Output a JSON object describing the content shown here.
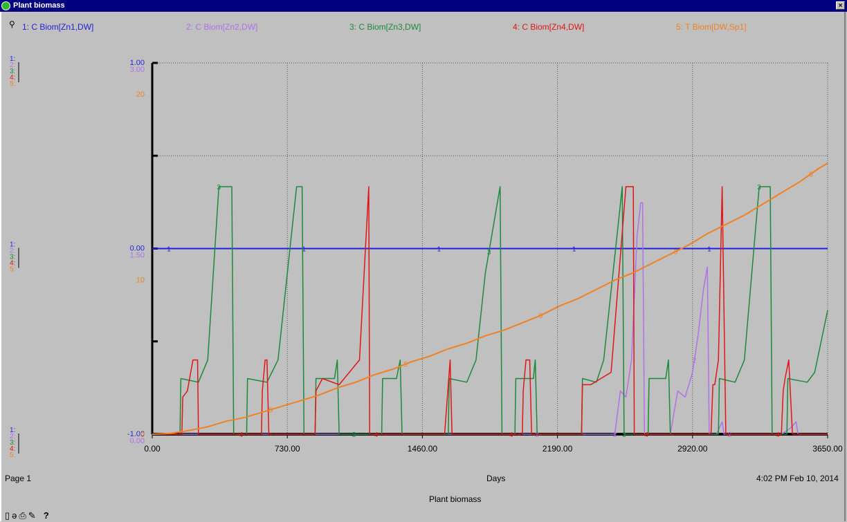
{
  "window": {
    "title": "Plant biomass",
    "close_label": "×"
  },
  "colors": {
    "s1": "#1f1fe0",
    "s2": "#b070e8",
    "s3": "#1a8a3a",
    "s4": "#e01414",
    "s5": "#f08020",
    "background": "#c0c0c0"
  },
  "footer": {
    "page": "Page 1",
    "timestamp": "4:02 PM  Feb 10, 2014",
    "chart_name": "Plant biomass"
  },
  "toolbar": {
    "icons": [
      "page-icon",
      "lock-icon",
      "print-icon",
      "pencil-icon",
      "help-icon"
    ],
    "help_label": "?"
  },
  "chart_data": {
    "type": "line",
    "title": "Plant biomass",
    "xlabel": "Days",
    "xlim": [
      0,
      3650
    ],
    "x_ticks": [
      "0.00",
      "730.00",
      "1460.00",
      "2190.00",
      "2920.00",
      "3650.00"
    ],
    "grid": true,
    "legend_position": "top",
    "axis_blocks": [
      {
        "labels": [
          "1:",
          "2:",
          "3:",
          "4:",
          "5:"
        ],
        "values": [
          "1.00",
          "3.00",
          "",
          "",
          "20"
        ]
      },
      {
        "labels": [
          "1:",
          "2:",
          "3:",
          "4:",
          "5:"
        ],
        "values": [
          "0.00",
          "1.50",
          "",
          "",
          "10"
        ]
      },
      {
        "labels": [
          "1:",
          "2:",
          "3:",
          "4:",
          "5:"
        ],
        "values": [
          "-1.00",
          "0.00",
          "",
          "",
          "0"
        ]
      }
    ],
    "series": [
      {
        "name": "1: C Biom[Zn1,DW]",
        "ylim": [
          -1,
          1
        ],
        "x": [
          0,
          3650
        ],
        "y": [
          0,
          0
        ]
      },
      {
        "name": "2: C Biom[Zn2,DW]",
        "ylim": [
          0,
          3
        ],
        "x": [
          0,
          2500,
          2530,
          2560,
          2590,
          2620,
          2640,
          2650,
          2660,
          2800,
          2840,
          2880,
          2920,
          2950,
          2980,
          3000,
          3010,
          3050,
          3080,
          3090,
          3400,
          3450,
          3480,
          3490,
          3650
        ],
        "y": [
          0,
          0,
          0.35,
          0.3,
          0.6,
          1.6,
          1.87,
          1.87,
          0,
          0,
          0.35,
          0.3,
          0.5,
          0.8,
          1.18,
          1.35,
          0,
          0,
          0.1,
          0,
          0,
          0.05,
          0.1,
          0,
          0
        ]
      },
      {
        "name": "3: C Biom[Zn3,DW]",
        "ylim": [
          0,
          3
        ],
        "x": [
          0,
          150,
          155,
          250,
          300,
          360,
          430,
          440,
          510,
          515,
          620,
          680,
          780,
          810,
          820,
          880,
          885,
          985,
          1000,
          1010,
          1240,
          1245,
          1320,
          1340,
          1350,
          1600,
          1605,
          1700,
          1750,
          1800,
          1880,
          1890,
          1960,
          1965,
          2060,
          2070,
          2080,
          2320,
          2325,
          2400,
          2440,
          2540,
          2550,
          2680,
          2685,
          2775,
          2790,
          2800,
          3060,
          3065,
          3150,
          3200,
          3280,
          3340,
          3350,
          3430,
          3435,
          3540,
          3580,
          3650
        ],
        "y": [
          0,
          0,
          0.45,
          0.42,
          0.6,
          2.0,
          2.0,
          0,
          0,
          0.45,
          0.42,
          0.6,
          2.0,
          2.0,
          0,
          0,
          0.45,
          0.45,
          0.6,
          0,
          0,
          0.45,
          0.45,
          0.6,
          0,
          0,
          0.45,
          0.42,
          0.6,
          1.3,
          2.0,
          0,
          0,
          0.45,
          0.45,
          0.6,
          0,
          0,
          0.45,
          0.42,
          0.6,
          2.0,
          0,
          0,
          0.45,
          0.45,
          0.6,
          0,
          0,
          0.45,
          0.42,
          0.6,
          2.0,
          2.0,
          0,
          0,
          0.45,
          0.42,
          0.5,
          1.0
        ]
      },
      {
        "name": "4: C Biom[Zn4,DW]",
        "ylim": [
          0,
          3
        ],
        "x": [
          0,
          160,
          165,
          190,
          220,
          245,
          250,
          590,
          595,
          610,
          620,
          630,
          880,
          885,
          920,
          1010,
          1120,
          1170,
          1175,
          1580,
          1600,
          1610,
          1620,
          2000,
          2005,
          2020,
          2040,
          2050,
          2320,
          2325,
          2370,
          2480,
          2560,
          2600,
          2605,
          3020,
          3030,
          3040,
          3060,
          3080,
          3100,
          3400,
          3410,
          3420,
          3440,
          3460,
          3650
        ],
        "y": [
          0,
          0,
          0.3,
          0.35,
          0.6,
          0.6,
          0,
          0,
          0.35,
          0.6,
          0.6,
          0,
          0,
          0.35,
          0.45,
          0.4,
          0.6,
          2.0,
          0,
          0,
          0.4,
          0.6,
          0,
          0,
          0.35,
          0.6,
          0.6,
          0,
          0,
          0.4,
          0.4,
          0.5,
          2.0,
          2.0,
          0,
          0,
          0.4,
          0.4,
          0.6,
          2.0,
          0,
          0,
          0.35,
          0.45,
          0.6,
          0,
          0
        ]
      },
      {
        "name": "5: T Biom[DW,Sp1]",
        "ylim": [
          0,
          20
        ],
        "x": [
          0,
          100,
          200,
          300,
          400,
          500,
          600,
          700,
          800,
          900,
          1000,
          1100,
          1200,
          1300,
          1400,
          1500,
          1600,
          1700,
          1800,
          1900,
          2000,
          2100,
          2200,
          2300,
          2400,
          2500,
          2600,
          2700,
          2800,
          2900,
          3000,
          3100,
          3200,
          3300,
          3400,
          3500,
          3600,
          3650
        ],
        "y": [
          0,
          0.05,
          0.2,
          0.4,
          0.7,
          0.9,
          1.2,
          1.5,
          1.8,
          2.1,
          2.5,
          2.8,
          3.2,
          3.5,
          3.9,
          4.2,
          4.6,
          4.9,
          5.3,
          5.6,
          6.0,
          6.4,
          6.9,
          7.3,
          7.8,
          8.3,
          8.7,
          9.2,
          9.7,
          10.2,
          10.8,
          11.3,
          11.8,
          12.4,
          13.0,
          13.6,
          14.3,
          14.6
        ]
      }
    ]
  }
}
